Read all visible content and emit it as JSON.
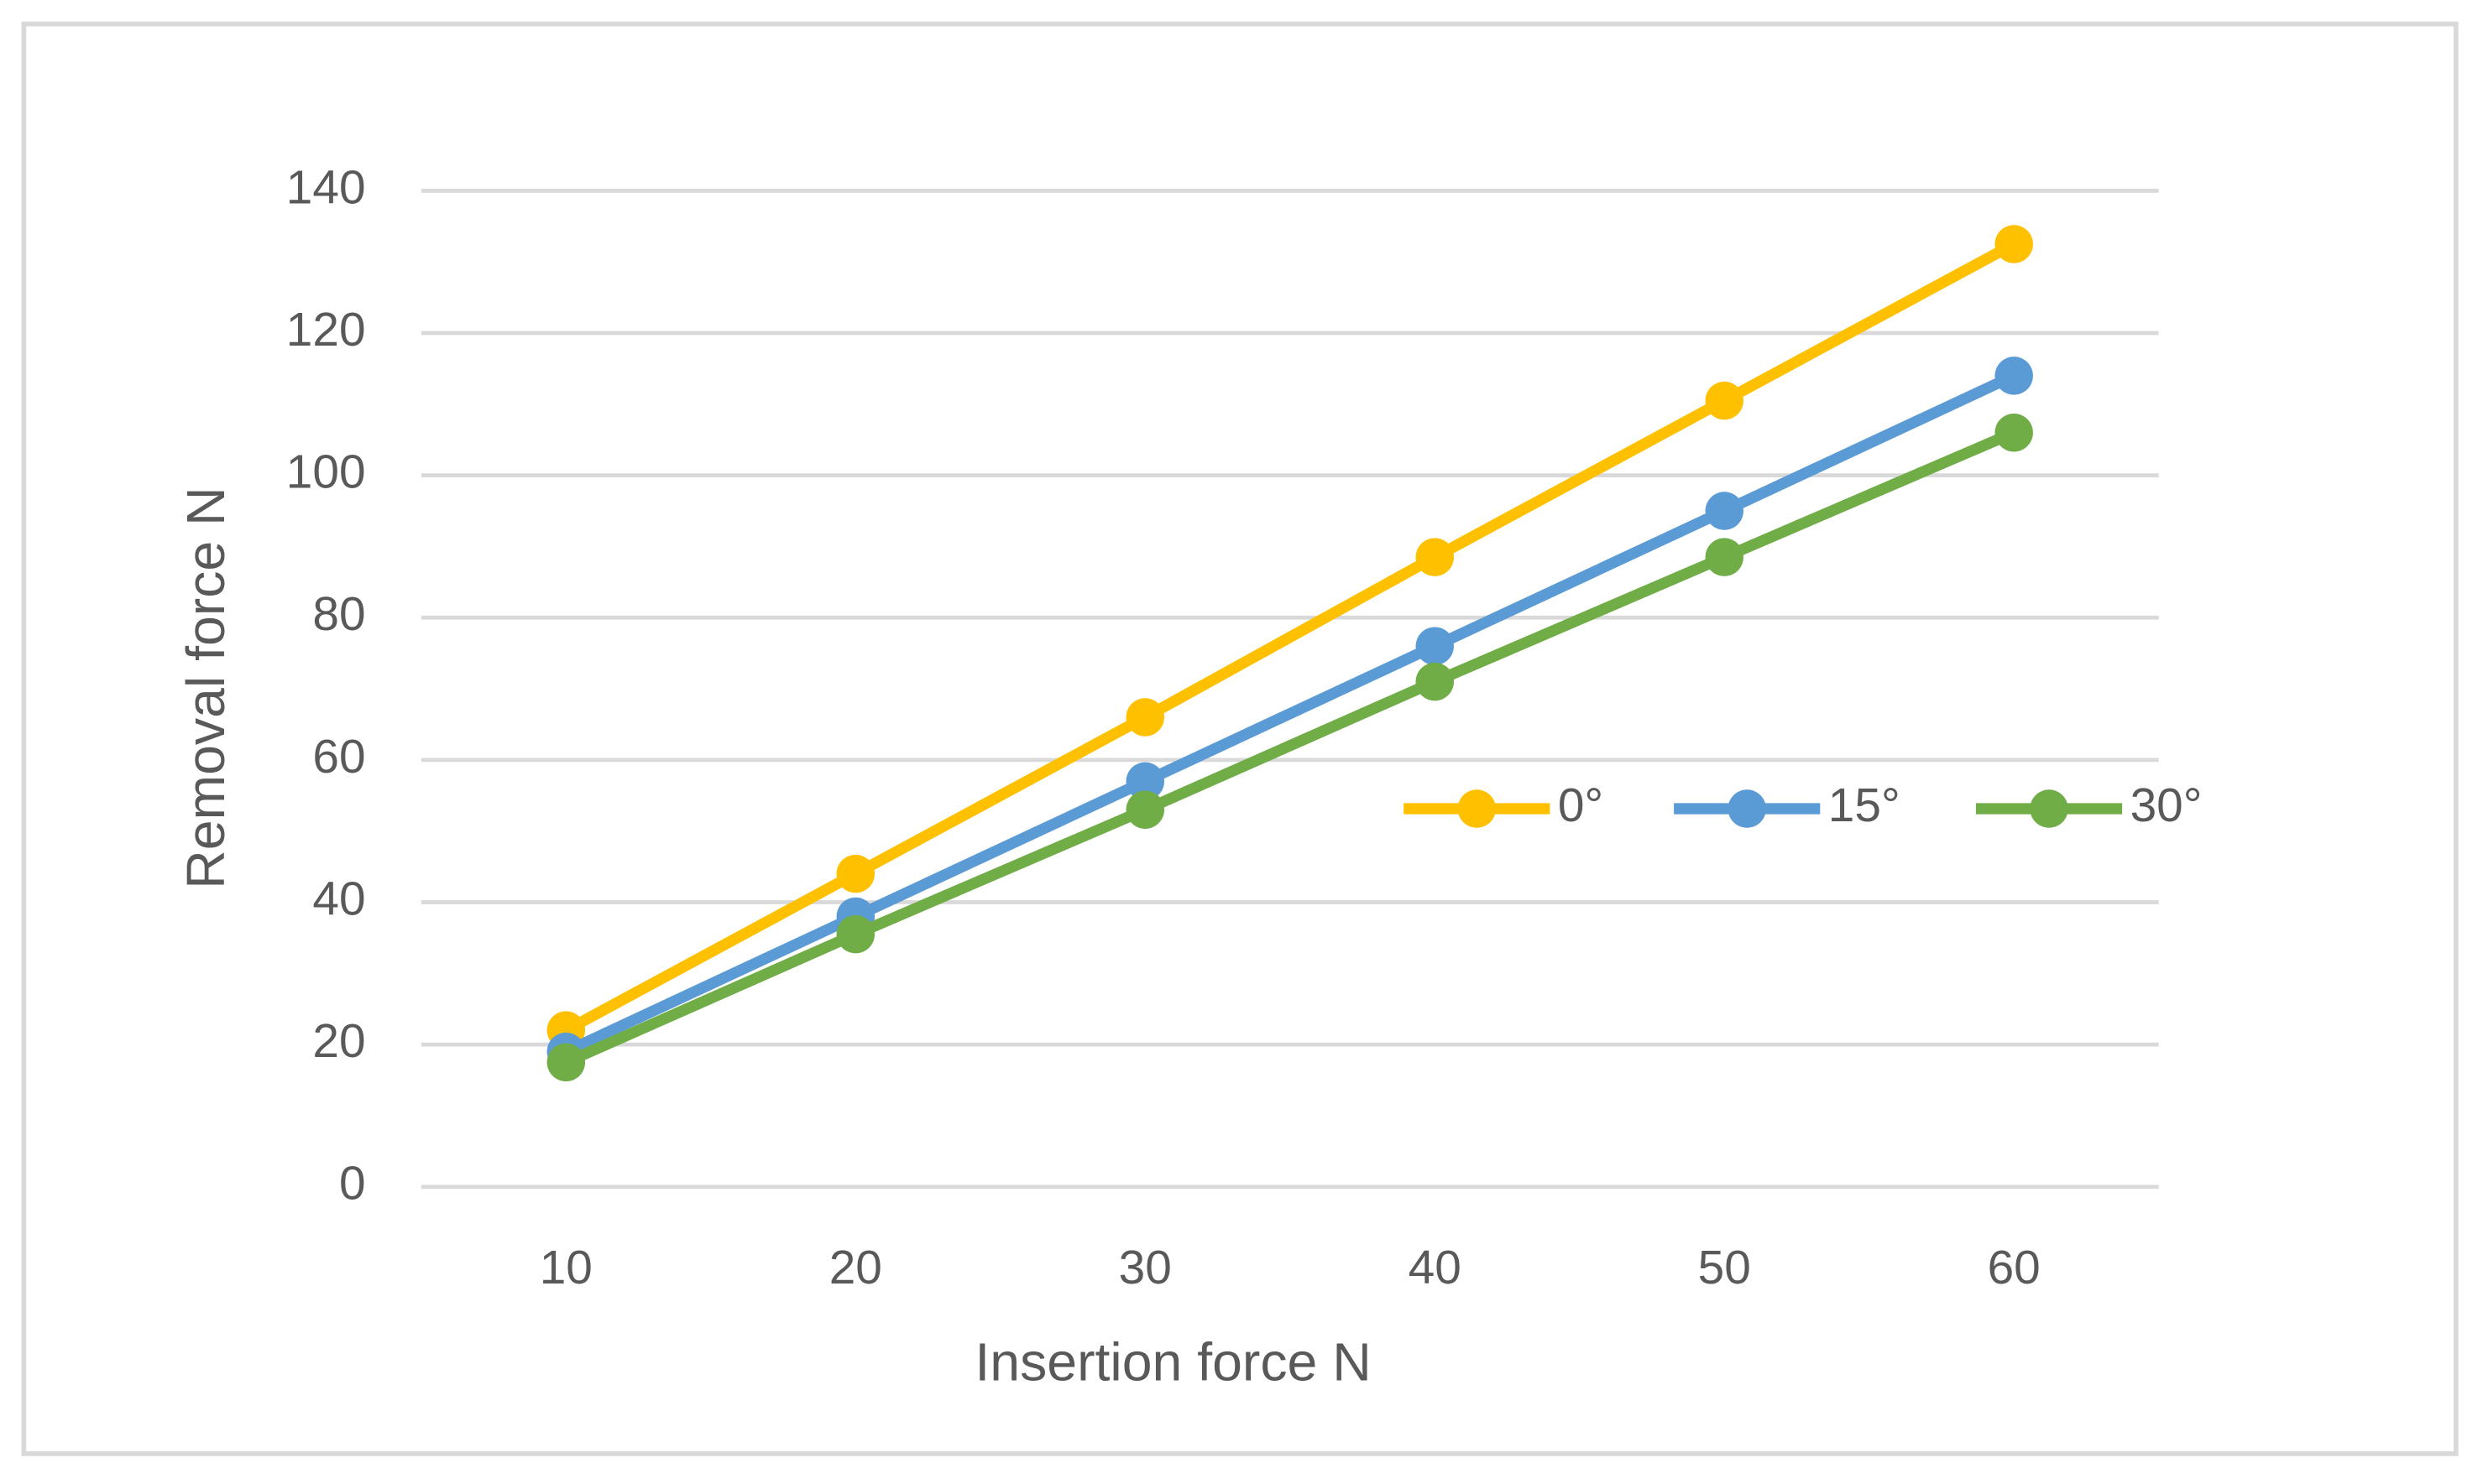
{
  "chart_data": {
    "type": "line",
    "x_label": "Insertion force N",
    "y_label": "Removal force N",
    "categories": [
      "10",
      "20",
      "30",
      "40",
      "50",
      "60"
    ],
    "series": [
      {
        "name": "0°",
        "color": "#ffc000",
        "values": [
          22,
          44,
          66,
          88.5,
          110.5,
          132.5
        ]
      },
      {
        "name": "15°",
        "color": "#5b9bd5",
        "values": [
          19,
          38,
          57,
          76,
          95,
          114
        ]
      },
      {
        "name": "30°",
        "color": "#70ad47",
        "values": [
          17.5,
          35.5,
          53,
          71,
          88.5,
          106
        ]
      }
    ],
    "ylim": [
      0,
      140
    ],
    "yticks": [
      0,
      20,
      40,
      60,
      80,
      100,
      120,
      140
    ],
    "grid": true,
    "legend": "right"
  }
}
